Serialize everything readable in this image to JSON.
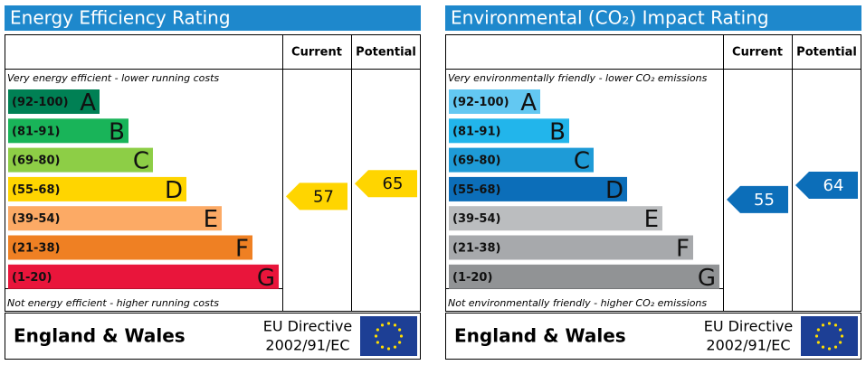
{
  "panels": [
    {
      "title": "Energy Efficiency Rating",
      "columns": [
        "Current",
        "Potential"
      ],
      "top_note": "Very energy efficient - lower running costs",
      "bottom_note": "Not energy efficient - higher running costs",
      "bands": [
        {
          "range": "(92-100)",
          "letter": "A",
          "color": "#008054"
        },
        {
          "range": "(81-91)",
          "letter": "B",
          "color": "#19b459"
        },
        {
          "range": "(69-80)",
          "letter": "C",
          "color": "#8dce46"
        },
        {
          "range": "(55-68)",
          "letter": "D",
          "color": "#ffd500"
        },
        {
          "range": "(39-54)",
          "letter": "E",
          "color": "#fcaa65"
        },
        {
          "range": "(21-38)",
          "letter": "F",
          "color": "#ef8023"
        },
        {
          "range": "(1-20)",
          "letter": "G",
          "color": "#e9153b"
        }
      ],
      "current": 57,
      "potential": 65,
      "footer": {
        "region": "England & Wales",
        "directive": [
          "EU Directive",
          "2002/91/EC"
        ]
      }
    },
    {
      "title": "Environmental (CO₂) Impact Rating",
      "columns": [
        "Current",
        "Potential"
      ],
      "top_note": "Very environmentally friendly - lower CO₂ emissions",
      "bottom_note": "Not environmentally friendly - higher CO₂ emissions",
      "bands": [
        {
          "range": "(92-100)",
          "letter": "A",
          "color": "#63c8f2"
        },
        {
          "range": "(81-91)",
          "letter": "B",
          "color": "#22b5eb"
        },
        {
          "range": "(69-80)",
          "letter": "C",
          "color": "#1e9bd7"
        },
        {
          "range": "(55-68)",
          "letter": "D",
          "color": "#0c6eb9"
        },
        {
          "range": "(39-54)",
          "letter": "E",
          "color": "#bbbdbf"
        },
        {
          "range": "(21-38)",
          "letter": "F",
          "color": "#a7a9ac"
        },
        {
          "range": "(1-20)",
          "letter": "G",
          "color": "#919395"
        }
      ],
      "current": 55,
      "potential": 64,
      "footer": {
        "region": "England & Wales",
        "directive": [
          "EU Directive",
          "2002/91/EC"
        ]
      }
    }
  ]
}
